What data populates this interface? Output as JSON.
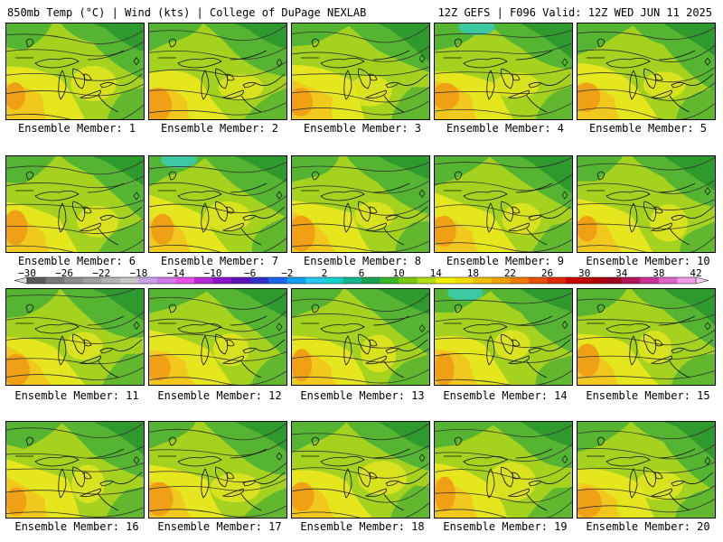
{
  "header": {
    "left": "850mb Temp (°C) | Wind (kts) | College of DuPage NEXLAB",
    "right": "12Z GEFS | F096 Valid: 12Z WED JUN 11 2025"
  },
  "panels": [
    {
      "label": "Ensemble Member: 1",
      "member": 1
    },
    {
      "label": "Ensemble Member: 2",
      "member": 2
    },
    {
      "label": "Ensemble Member: 3",
      "member": 3
    },
    {
      "label": "Ensemble Member: 4",
      "member": 4
    },
    {
      "label": "Ensemble Member: 5",
      "member": 5
    },
    {
      "label": "Ensemble Member: 6",
      "member": 6
    },
    {
      "label": "Ensemble Member: 7",
      "member": 7
    },
    {
      "label": "Ensemble Member: 8",
      "member": 8
    },
    {
      "label": "Ensemble Member: 9",
      "member": 9
    },
    {
      "label": "Ensemble Member: 10",
      "member": 10
    },
    {
      "label": "Ensemble Member: 11",
      "member": 11
    },
    {
      "label": "Ensemble Member: 12",
      "member": 12
    },
    {
      "label": "Ensemble Member: 13",
      "member": 13
    },
    {
      "label": "Ensemble Member: 14",
      "member": 14
    },
    {
      "label": "Ensemble Member: 15",
      "member": 15
    },
    {
      "label": "Ensemble Member: 16",
      "member": 16
    },
    {
      "label": "Ensemble Member: 17",
      "member": 17
    },
    {
      "label": "Ensemble Member: 18",
      "member": 18
    },
    {
      "label": "Ensemble Member: 19",
      "member": 19
    },
    {
      "label": "Ensemble Member: 20",
      "member": 20
    }
  ],
  "colorbar": {
    "ticks": [
      "−30",
      "−26",
      "−22",
      "−18",
      "−14",
      "−10",
      "−6",
      "−2",
      "2",
      "6",
      "10",
      "14",
      "18",
      "22",
      "26",
      "30",
      "34",
      "38",
      "42"
    ],
    "colors": [
      "#5a5a5a",
      "#787878",
      "#8c8c8c",
      "#a0a0a0",
      "#b4b4b4",
      "#c8c8c8",
      "#c8a0e6",
      "#d278e6",
      "#e650e6",
      "#b428d2",
      "#8c14c8",
      "#5a14b4",
      "#3232c8",
      "#1e64e6",
      "#14a0f0",
      "#28c8f0",
      "#14d2c8",
      "#14b48c",
      "#1ea050",
      "#3cb428",
      "#78c814",
      "#b4dc14",
      "#f0f000",
      "#f0dc00",
      "#f0be00",
      "#f0a000",
      "#f07800",
      "#e65000",
      "#dc2800",
      "#c80000",
      "#b40000",
      "#a0001e",
      "#b4145a",
      "#c83296",
      "#dc64c8",
      "#f09ce6"
    ],
    "palette_names": [
      "gray",
      "purple",
      "blue",
      "cyan",
      "teal",
      "green",
      "yellow",
      "orange",
      "red",
      "maroon",
      "pink"
    ]
  },
  "field_colors": {
    "dark_green": "#2e9a2e",
    "green": "#55b432",
    "yellow_green": "#a5d21e",
    "yellow": "#e6e61e",
    "gold": "#f0c81e",
    "orange": "#f0a014",
    "teal": "#3cc8a0"
  }
}
